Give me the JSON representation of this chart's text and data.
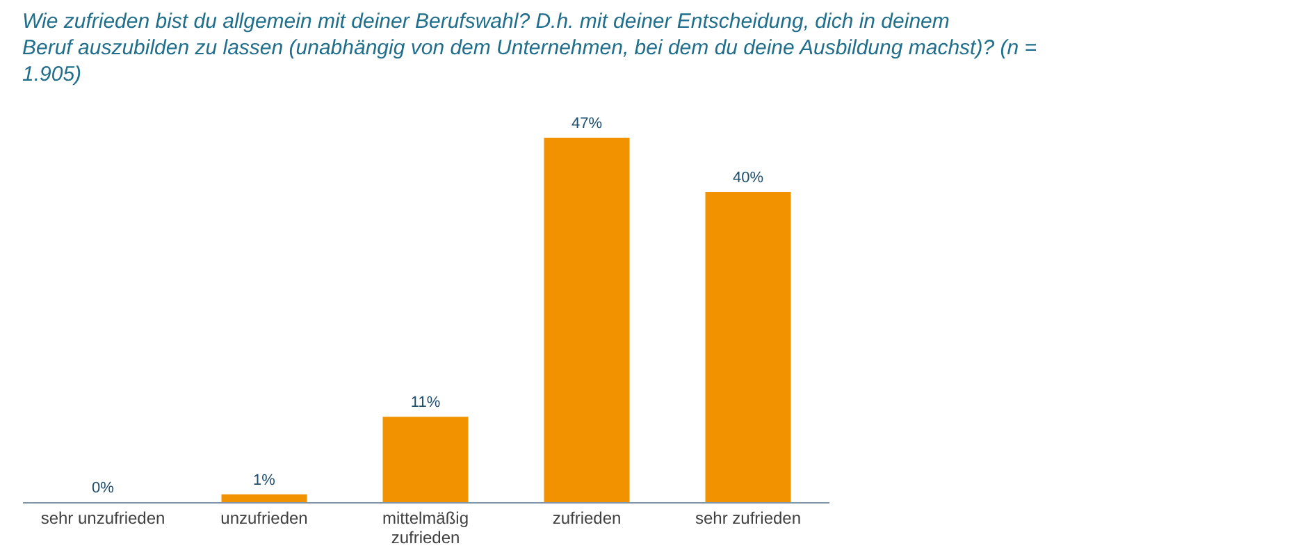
{
  "chart_data": {
    "type": "bar",
    "title": "Wie zufrieden bist du allgemein mit deiner Berufswahl? D.h. mit deiner Entscheidung, dich in deinem Beruf auszubilden zu lassen (unabhängig von dem Unternehmen, bei dem du deine Ausbildung machst)? (n = 1.905)",
    "categories": [
      "sehr unzufrieden",
      "unzufrieden",
      "mittelmäßig zufrieden",
      "zufrieden",
      "sehr zufrieden"
    ],
    "values": [
      0,
      1,
      11,
      47,
      40
    ],
    "value_labels": [
      "0%",
      "1%",
      "11%",
      "47%",
      "40%"
    ],
    "color": "#f39200"
  }
}
